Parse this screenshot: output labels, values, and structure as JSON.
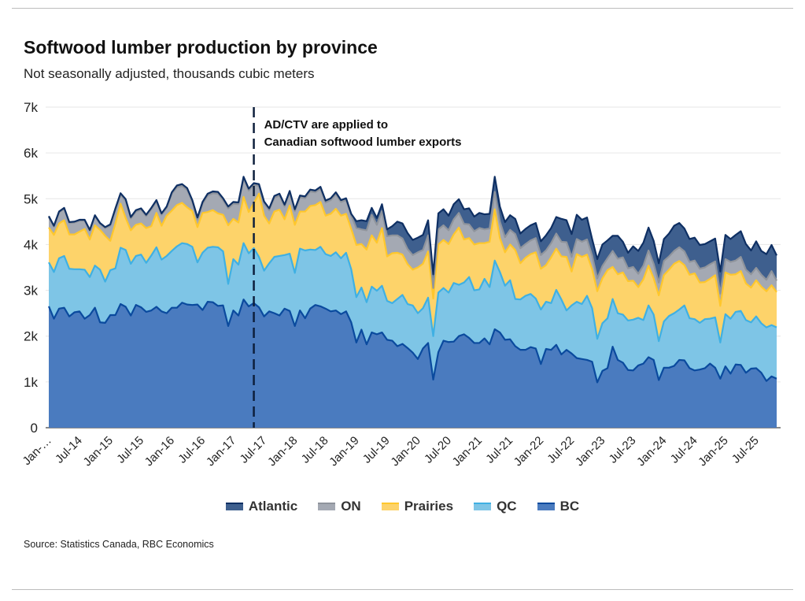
{
  "chart_data": {
    "type": "area",
    "stacked": true,
    "title": "Softwood lumber production by province",
    "subtitle": "Not seasonally adjusted, thousands cubic meters",
    "source": "Source: Statistics Canada, RBC Economics",
    "xlabel": "",
    "ylabel": "",
    "ylim": [
      0,
      7000
    ],
    "y_ticks": [
      0,
      1000,
      2000,
      3000,
      4000,
      5000,
      6000,
      7000
    ],
    "y_tick_labels": [
      "0",
      "1k",
      "2k",
      "3k",
      "4k",
      "5k",
      "6k",
      "7k"
    ],
    "x_start": "Jan-14",
    "x_end": "Nov-25",
    "frequency": "monthly",
    "x_tick_labels": [
      "Jan-…",
      "Jul-14",
      "Jan-15",
      "Jul-15",
      "Jan-16",
      "Jul-16",
      "Jan-17",
      "Jul-17",
      "Jan-18",
      "Jul-18",
      "Jan-19",
      "Jul-19",
      "Jan-20",
      "Jul-20",
      "Jan-21",
      "Jul-21",
      "Jan-22",
      "Jul-22",
      "Jan-23",
      "Jul-23",
      "Jan-24",
      "Jul-24",
      "Jan-25",
      "Jul-25"
    ],
    "grid": true,
    "legend_position": "bottom",
    "annotation": {
      "at": "May-17",
      "line_style": "dashed",
      "text_lines": [
        "AD/CTV are applied to",
        "Canadian softwood lumber exports"
      ]
    },
    "series": [
      {
        "name": "BC",
        "fill": "#4a7bbf",
        "line": "#0a4a9e",
        "values": [
          2650,
          2380,
          2600,
          2620,
          2430,
          2520,
          2540,
          2380,
          2460,
          2620,
          2300,
          2290,
          2460,
          2460,
          2700,
          2640,
          2450,
          2680,
          2630,
          2530,
          2560,
          2640,
          2540,
          2500,
          2620,
          2620,
          2730,
          2690,
          2680,
          2690,
          2570,
          2750,
          2740,
          2660,
          2670,
          2220,
          2560,
          2450,
          2800,
          2650,
          2720,
          2630,
          2430,
          2540,
          2500,
          2450,
          2600,
          2550,
          2220,
          2560,
          2390,
          2600,
          2680,
          2650,
          2600,
          2540,
          2560,
          2480,
          2540,
          2300,
          1860,
          2140,
          1820,
          2080,
          2040,
          2080,
          1920,
          1900,
          1780,
          1830,
          1740,
          1640,
          1500,
          1730,
          1850,
          1050,
          1650,
          1900,
          1870,
          1880,
          2000,
          2040,
          1960,
          1850,
          1850,
          1950,
          1820,
          2150,
          2080,
          1920,
          1930,
          1780,
          1700,
          1700,
          1760,
          1730,
          1390,
          1720,
          1700,
          1810,
          1600,
          1700,
          1620,
          1520,
          1500,
          1480,
          1440,
          990,
          1240,
          1300,
          1770,
          1480,
          1420,
          1260,
          1250,
          1360,
          1400,
          1540,
          1480,
          1040,
          1310,
          1310,
          1350,
          1480,
          1470,
          1300,
          1250,
          1270,
          1300,
          1400,
          1310,
          1070,
          1340,
          1180,
          1380,
          1370,
          1200,
          1290,
          1300,
          1200,
          1020,
          1120,
          1070
        ]
      },
      {
        "name": "QC",
        "fill": "#7ec5e6",
        "line": "#3fb0e3",
        "values": [
          960,
          1020,
          1100,
          1130,
          1040,
          940,
          920,
          1070,
          830,
          920,
          1150,
          900,
          980,
          1020,
          1230,
          1240,
          1130,
          1070,
          1150,
          1070,
          1200,
          1300,
          1130,
          1250,
          1240,
          1340,
          1300,
          1320,
          1270,
          920,
          1250,
          1180,
          1210,
          1280,
          1180,
          920,
          1120,
          1110,
          1230,
          1160,
          1200,
          1100,
          1000,
          1050,
          1230,
          1300,
          1170,
          1250,
          1160,
          1350,
          1480,
          1290,
          1200,
          1300,
          1190,
          1210,
          1270,
          1220,
          1280,
          1160,
          990,
          920,
          920,
          1000,
          950,
          1020,
          850,
          820,
          1030,
          1070,
          960,
          1030,
          1000,
          880,
          990,
          950,
          1300,
          1150,
          1080,
          1280,
          1120,
          1130,
          1330,
          1150,
          1170,
          1300,
          1250,
          1500,
          1320,
          1180,
          1290,
          1030,
          1100,
          1180,
          1160,
          1090,
          1190,
          1030,
          1020,
          1200,
          1200,
          860,
          1050,
          1230,
          1200,
          1400,
          1170,
          950,
          1040,
          1090,
          1040,
          1020,
          1050,
          1080,
          1110,
          1040,
          950,
          1130,
          990,
          850,
          1010,
          1130,
          1150,
          1100,
          1200,
          1090,
          1120,
          1020,
          1070,
          980,
          1100,
          790,
          1140,
          1200,
          1150,
          1180,
          1150,
          1010,
          1130,
          1080,
          1170,
          1120,
          1120
        ]
      },
      {
        "name": "Prairies",
        "fill": "#fdd36a",
        "line": "#ffc72c",
        "values": [
          760,
          810,
          760,
          780,
          750,
          760,
          820,
          890,
          820,
          880,
          870,
          1000,
          640,
          980,
          960,
          700,
          730,
          680,
          680,
          760,
          640,
          750,
          740,
          880,
          880,
          900,
          880,
          800,
          780,
          770,
          870,
          780,
          800,
          740,
          800,
          1280,
          880,
          920,
          1010,
          900,
          980,
          1380,
          1200,
          870,
          990,
          1010,
          780,
          1050,
          1050,
          810,
          850,
          950,
          980,
          980,
          840,
          920,
          950,
          930,
          850,
          880,
          1140,
          950,
          1150,
          1120,
          1050,
          1260,
          970,
          1090,
          1010,
          880,
          870,
          780,
          1000,
          970,
          1010,
          820,
          1050,
          1050,
          1060,
          1060,
          1250,
          940,
          850,
          1000,
          1010,
          780,
          990,
          1120,
          740,
          730,
          780,
          1070,
          790,
          830,
          870,
          1010,
          890,
          800,
          1000,
          900,
          940,
          1170,
          740,
          1040,
          1030,
          900,
          850,
          1040,
          980,
          1050,
          700,
          850,
          920,
          860,
          850,
          670,
          890,
          870,
          790,
          1000,
          1010,
          1010,
          1080,
          1060,
          880,
          950,
          1000,
          880,
          810,
          870,
          920,
          800,
          910,
          960,
          820,
          870,
          800,
          760,
          790,
          800,
          790,
          870,
          770
        ]
      },
      {
        "name": "ON",
        "fill": "#a4a9b3",
        "line": "#8f949c",
        "values": [
          230,
          180,
          240,
          250,
          250,
          260,
          240,
          180,
          190,
          200,
          130,
          170,
          330,
          300,
          200,
          370,
          260,
          290,
          300,
          260,
          370,
          250,
          240,
          170,
          370,
          390,
          370,
          380,
          200,
          170,
          200,
          360,
          370,
          430,
          320,
          370,
          330,
          400,
          400,
          470,
          400,
          170,
          270,
          290,
          300,
          310,
          280,
          280,
          300,
          310,
          290,
          320,
          280,
          290,
          290,
          300,
          320,
          300,
          300,
          290,
          370,
          320,
          420,
          450,
          390,
          370,
          440,
          390,
          380,
          350,
          330,
          320,
          330,
          300,
          350,
          230,
          330,
          320,
          300,
          330,
          320,
          340,
          300,
          290,
          330,
          300,
          290,
          380,
          360,
          330,
          320,
          350,
          330,
          300,
          300,
          310,
          300,
          320,
          310,
          330,
          320,
          320,
          320,
          330,
          330,
          330,
          300,
          280,
          270,
          260,
          350,
          340,
          330,
          280,
          300,
          290,
          300,
          330,
          320,
          280,
          310,
          290,
          280,
          300,
          300,
          280,
          280,
          300,
          320,
          320,
          300,
          270,
          290,
          280,
          300,
          310,
          300,
          290,
          270,
          260,
          250,
          310,
          250
        ]
      },
      {
        "name": "Atlantic",
        "fill": "#3e5f8e",
        "line": "#0e2f63",
        "values": [
          20,
          20,
          20,
          20,
          20,
          20,
          20,
          20,
          20,
          20,
          20,
          20,
          30,
          30,
          30,
          40,
          30,
          30,
          30,
          30,
          30,
          30,
          30,
          30,
          30,
          40,
          40,
          40,
          40,
          40,
          40,
          40,
          40,
          40,
          40,
          40,
          40,
          40,
          40,
          40,
          40,
          40,
          40,
          40,
          40,
          40,
          40,
          40,
          40,
          40,
          40,
          40,
          40,
          40,
          40,
          40,
          40,
          40,
          40,
          40,
          150,
          200,
          200,
          150,
          150,
          150,
          150,
          200,
          300,
          330,
          350,
          330,
          320,
          330,
          330,
          300,
          350,
          350,
          320,
          330,
          300,
          320,
          350,
          320,
          330,
          330,
          320,
          330,
          330,
          330,
          320,
          330,
          320,
          330,
          330,
          330,
          300,
          330,
          330,
          360,
          500,
          480,
          500,
          530,
          480,
          480,
          360,
          420,
          470,
          390,
          330,
          500,
          340,
          340,
          450,
          500,
          500,
          500,
          500,
          420,
          480,
          500,
          550,
          530,
          500,
          500,
          500,
          520,
          510,
          500,
          500,
          480,
          530,
          500,
          560,
          560,
          560,
          520,
          580,
          520,
          560,
          570,
          550
        ]
      }
    ]
  }
}
